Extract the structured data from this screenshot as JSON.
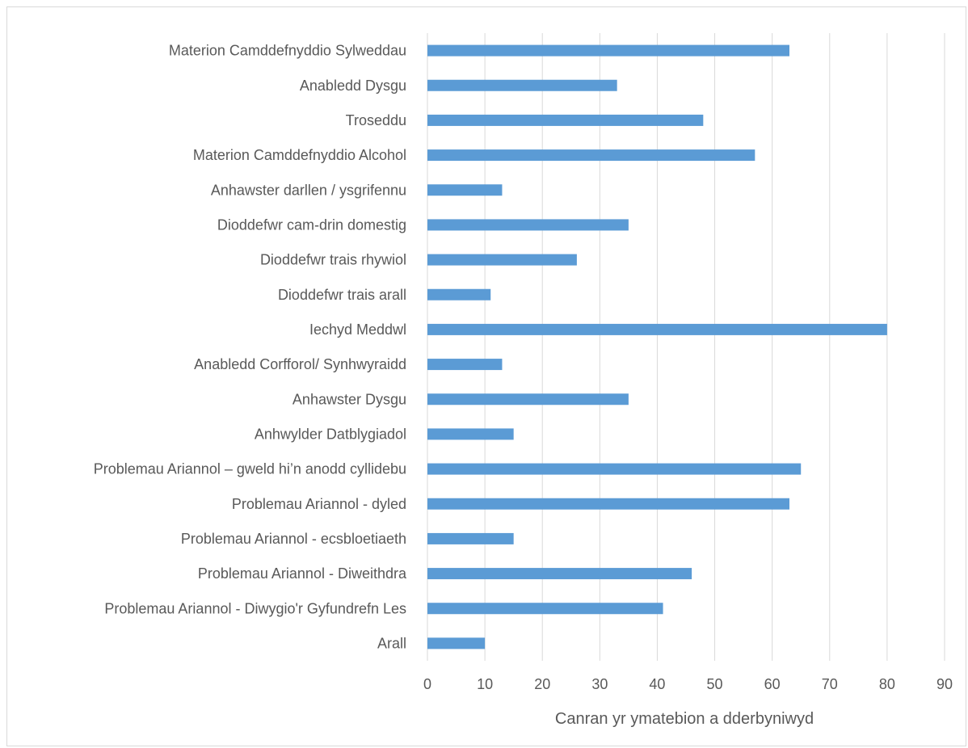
{
  "chart_data": {
    "type": "bar",
    "orientation": "horizontal",
    "categories": [
      "Materion Camddefnyddio Sylweddau",
      "Anabledd Dysgu",
      "Troseddu",
      "Materion Camddefnyddio Alcohol",
      "Anhawster darllen / ysgrifennu",
      "Dioddefwr cam-drin domestig",
      "Dioddefwr trais rhywiol",
      "Dioddefwr trais arall",
      "Iechyd Meddwl",
      "Anabledd Corfforol/ Synhwyraidd",
      "Anhawster Dysgu",
      "Anhwylder Datblygiadol",
      "Problemau Ariannol – gweld hi’n anodd cyllidebu",
      "Problemau Ariannol - dyled",
      "Problemau Ariannol - ecsbloetiaeth",
      "Problemau Ariannol - Diweithdra",
      "Problemau Ariannol - Diwygio'r Gyfundrefn Les",
      "Arall"
    ],
    "values": [
      63,
      33,
      48,
      57,
      13,
      35,
      26,
      11,
      80,
      13,
      35,
      15,
      65,
      63,
      15,
      46,
      41,
      10
    ],
    "xlabel": "Canran yr ymatebion a dderbyniwyd",
    "ylabel": "",
    "xlim": [
      0,
      90
    ],
    "xticks": [
      0,
      10,
      20,
      30,
      40,
      50,
      60,
      70,
      80,
      90
    ],
    "grid": true,
    "legend": "none",
    "bar_color": "#5b9bd5"
  }
}
